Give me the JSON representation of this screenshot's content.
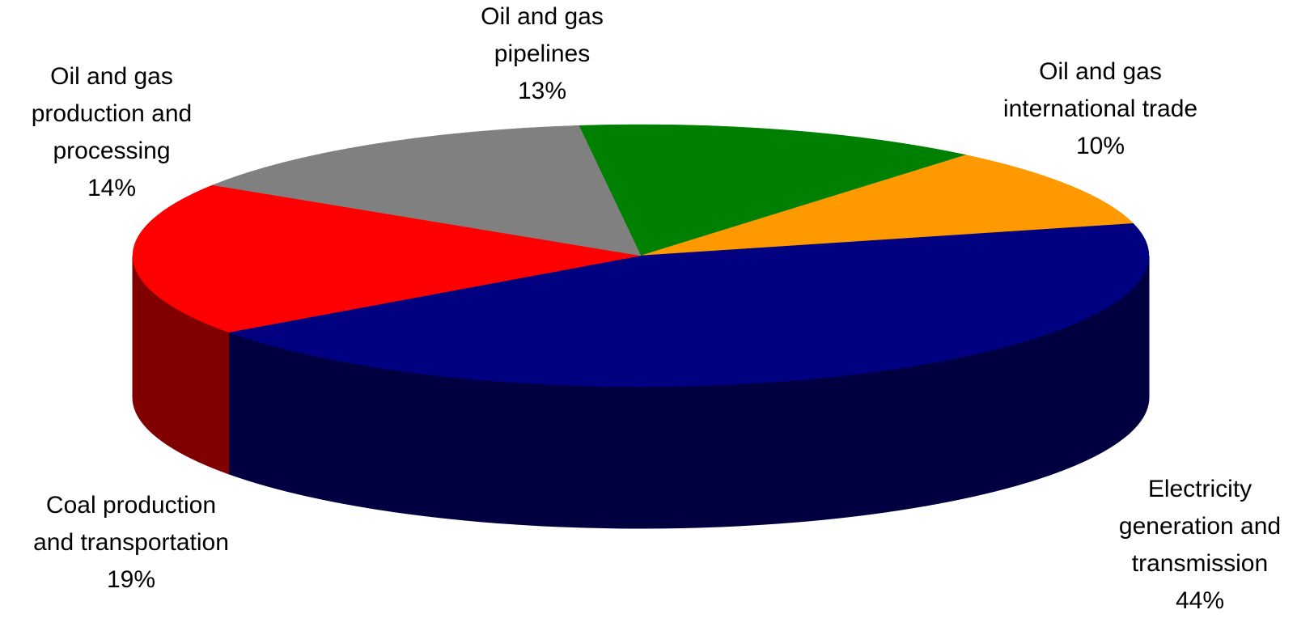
{
  "chart_data": {
    "type": "pie",
    "style": "3d",
    "categories": [
      "Oil and gas pipelines",
      "Oil and gas international trade",
      "Electricity generation and transmission",
      "Coal production and transportation",
      "Oil and gas production and processing"
    ],
    "values": [
      13,
      10,
      44,
      19,
      14
    ],
    "unit": "%",
    "colors": [
      "#008000",
      "#FF9900",
      "#000080",
      "#FF0000",
      "#808080"
    ],
    "side_colors": [
      "#004000",
      "#804d00",
      "#000040",
      "#800000",
      "#404040"
    ],
    "legend": "none",
    "labels": [
      {
        "lines": [
          "Oil and gas",
          "pipelines"
        ],
        "percent": "13%"
      },
      {
        "lines": [
          "Oil and gas",
          "international trade"
        ],
        "percent": "10%"
      },
      {
        "lines": [
          "Electricity",
          "generation and",
          "transmission"
        ],
        "percent": "44%"
      },
      {
        "lines": [
          "Coal production",
          "and transportation"
        ],
        "percent": "19%"
      },
      {
        "lines": [
          "Oil and gas",
          "production and",
          "processing"
        ],
        "percent": "14%"
      }
    ]
  }
}
